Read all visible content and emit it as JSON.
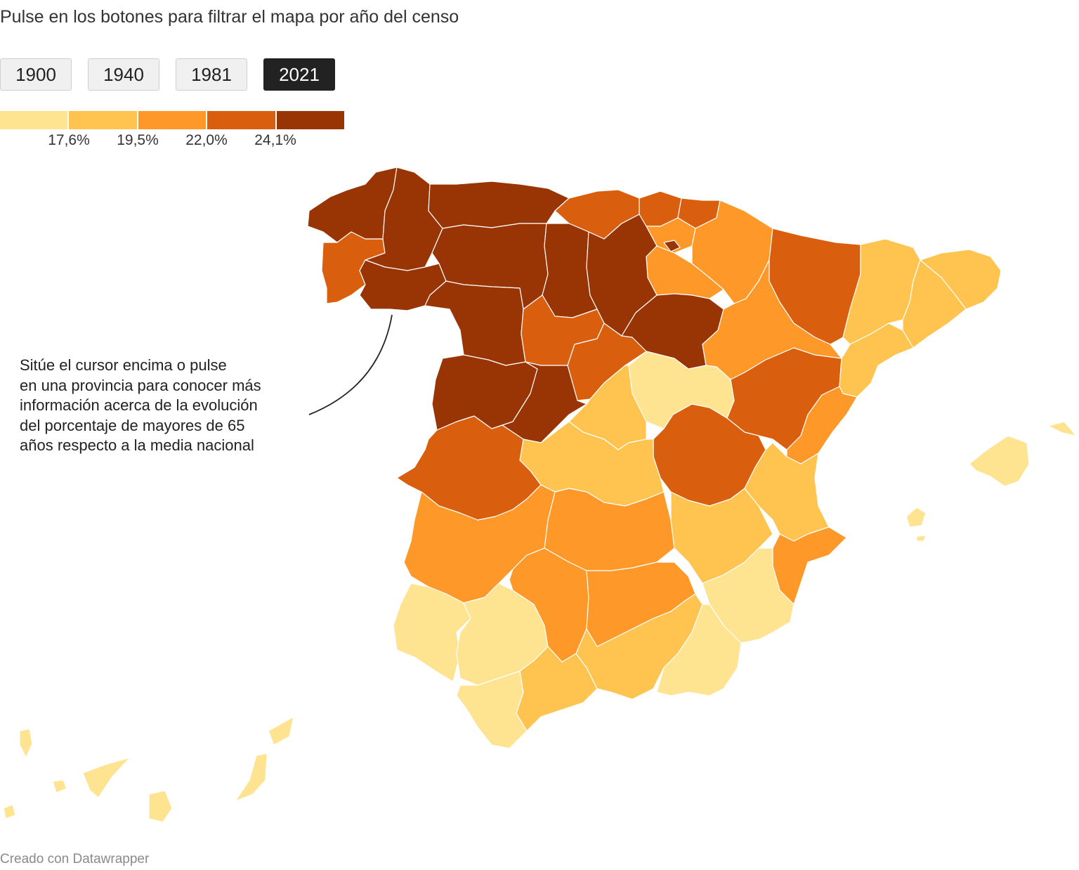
{
  "intro": "Pulse en los botones para filtrar el mapa por año del censo",
  "buttons": [
    {
      "label": "1900",
      "active": false
    },
    {
      "label": "1940",
      "active": false
    },
    {
      "label": "1981",
      "active": false
    },
    {
      "label": "2021",
      "active": true
    }
  ],
  "legend": {
    "colors": [
      "#fee391",
      "#fec44f",
      "#fe9929",
      "#d95f0e",
      "#993404"
    ],
    "labels": [
      "17,6%",
      "19,5%",
      "22,0%",
      "24,1%"
    ]
  },
  "annotation": "Sitúe el cursor encima o pulse\nen una provincia para conocer más\ninformación acerca de la evolución\ndel porcentaje de mayores de 65\naños respecto a la media nacional",
  "credit": "Creado con Datawrapper"
}
